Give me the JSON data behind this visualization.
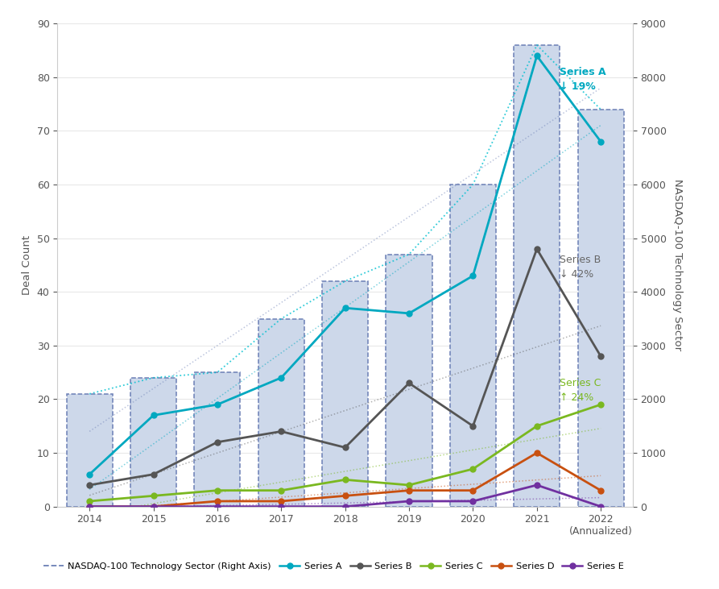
{
  "years": [
    2014,
    2015,
    2016,
    2017,
    2018,
    2019,
    2020,
    2021,
    2022
  ],
  "year_labels": [
    "2014",
    "2015",
    "2016",
    "2017",
    "2018",
    "2019",
    "2020",
    "2021",
    "2022\n(Annualized)"
  ],
  "bar_values": [
    21,
    24,
    25,
    35,
    42,
    47,
    60,
    86,
    74
  ],
  "series_a": [
    6,
    17,
    19,
    24,
    37,
    36,
    43,
    84,
    68
  ],
  "series_b": [
    4,
    6,
    12,
    14,
    11,
    23,
    15,
    48,
    28
  ],
  "series_c": [
    1,
    2,
    3,
    3,
    5,
    4,
    7,
    15,
    19
  ],
  "series_d": [
    0,
    0,
    1,
    1,
    2,
    3,
    3,
    10,
    3
  ],
  "series_e": [
    0,
    0,
    0,
    0,
    0,
    1,
    1,
    4,
    0
  ],
  "bar_color": "#cdd8ea",
  "bar_edgecolor": "#6b7fb5",
  "series_a_color": "#00a8c0",
  "series_b_color": "#555555",
  "series_c_color": "#7ab820",
  "series_d_color": "#c85010",
  "series_e_color": "#7030a0",
  "nasdaq_line_color": "#00c0d0",
  "trend_nasdaq_color": "#6b7fb5",
  "ylim_left": [
    0,
    90
  ],
  "ylim_right": [
    0,
    9000
  ],
  "ylabel_left": "Deal Count",
  "ylabel_right": "NASDAQ-100 Technology Sector",
  "background_color": "#ffffff",
  "legend_nasdaq": "NASDAQ-100 Technology Sector (Right Axis)",
  "legend_a": "Series A",
  "legend_b": "Series B",
  "legend_c": "Series C",
  "legend_d": "Series D",
  "legend_e": "Series E"
}
